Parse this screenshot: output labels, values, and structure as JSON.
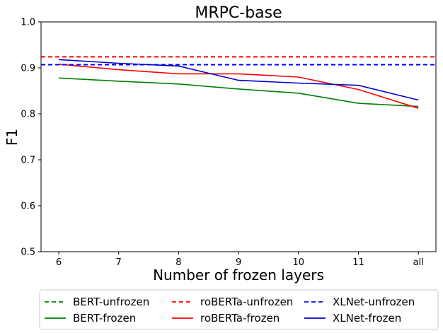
{
  "chart_data": {
    "type": "line",
    "title": "MRPC-base",
    "xlabel": "Number of frozen layers",
    "ylabel": "F1",
    "categories": [
      "6",
      "7",
      "8",
      "9",
      "10",
      "11",
      "all"
    ],
    "ylim": [
      0.5,
      1.0
    ],
    "yticks": [
      "0.5",
      "0.6",
      "0.7",
      "0.8",
      "0.9",
      "1.0"
    ],
    "grid": false,
    "legend_position": "bottom, outside plot, 3 columns",
    "series": [
      {
        "name": "BERT-unfrozen",
        "kind": "hline",
        "value": 0.907,
        "color": "#008000",
        "dash": true
      },
      {
        "name": "BERT-frozen",
        "kind": "line",
        "values": [
          0.878,
          0.871,
          0.865,
          0.854,
          0.845,
          0.823,
          0.816
        ],
        "color": "#008000",
        "dash": false
      },
      {
        "name": "roBERTa-unfrozen",
        "kind": "hline",
        "value": 0.924,
        "color": "#ff0000",
        "dash": true
      },
      {
        "name": "roBERTa-frozen",
        "kind": "line",
        "values": [
          0.908,
          0.896,
          0.887,
          0.887,
          0.88,
          0.853,
          0.812
        ],
        "color": "#ff0000",
        "dash": false
      },
      {
        "name": "XLNet-unfrozen",
        "kind": "hline",
        "value": 0.907,
        "color": "#0000ff",
        "dash": true
      },
      {
        "name": "XLNet-frozen",
        "kind": "line",
        "values": [
          0.918,
          0.91,
          0.904,
          0.873,
          0.867,
          0.862,
          0.83
        ],
        "color": "#0000cc",
        "dash": false
      }
    ]
  }
}
